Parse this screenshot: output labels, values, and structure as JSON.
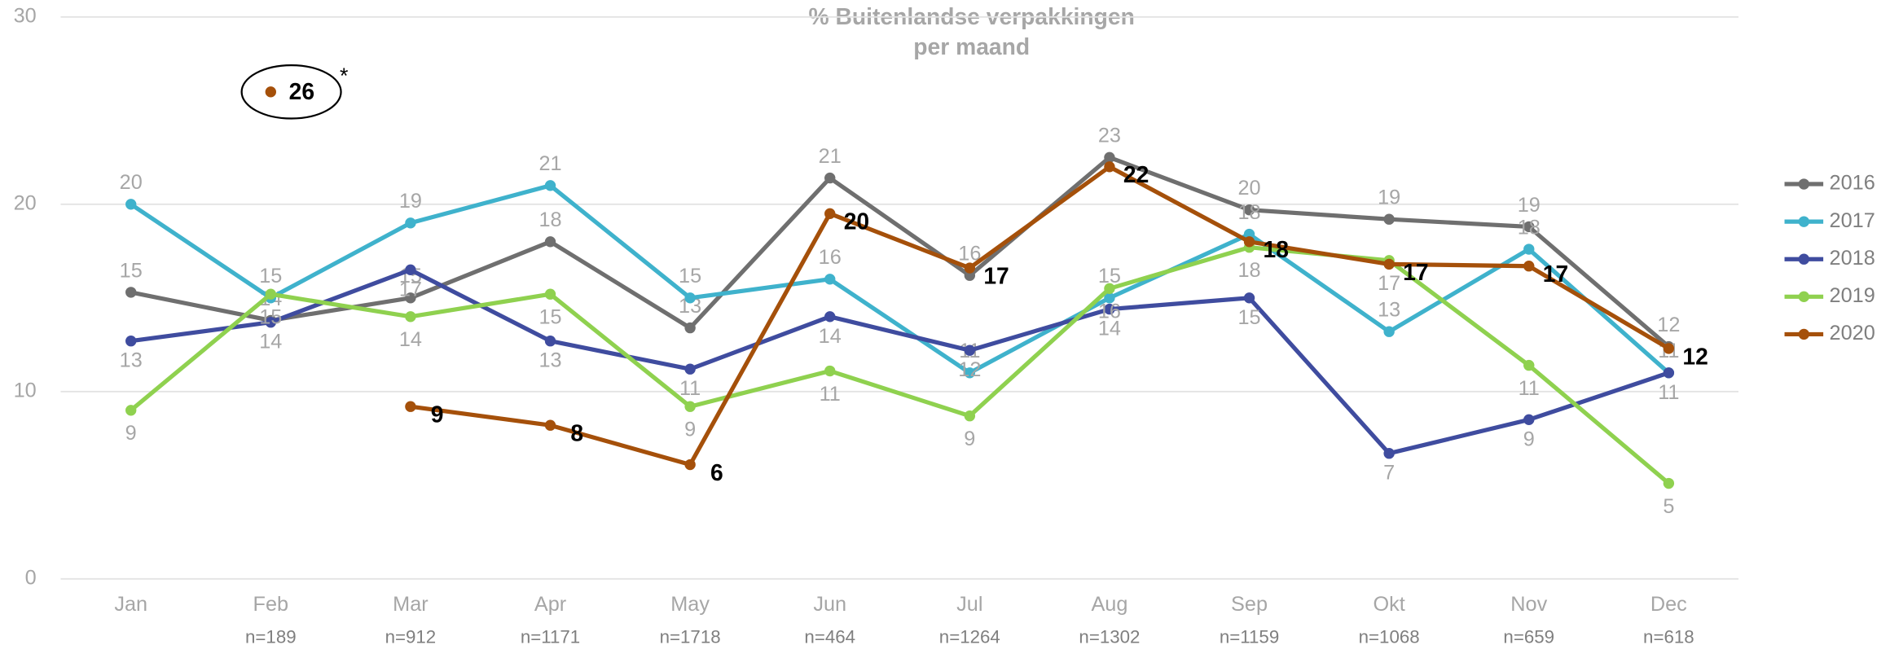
{
  "chart_data": {
    "type": "line",
    "title": "% Buitenlandse verpakkingen",
    "subtitle": "per maand",
    "categories": [
      "Jan",
      "Feb",
      "Mar",
      "Apr",
      "May",
      "Jun",
      "Jul",
      "Aug",
      "Sep",
      "Okt",
      "Nov",
      "Dec"
    ],
    "sample_sizes": [
      null,
      "n=189",
      "n=912",
      "n=1171",
      "n=1718",
      "n=464",
      "n=1264",
      "n=1302",
      "n=1159",
      "n=1068",
      "n=659",
      "n=618"
    ],
    "ylim": [
      0,
      30
    ],
    "yticks": [
      0,
      10,
      20,
      30
    ],
    "grid": true,
    "legend": "right",
    "series": [
      {
        "name": "2016",
        "color": "#6f6f6f",
        "values": [
          15.3,
          13.8,
          15,
          18,
          13.4,
          21.4,
          16.2,
          22.5,
          19.7,
          19.2,
          18.8,
          12.4
        ],
        "value_labels": [
          "15",
          "14",
          "15",
          "18",
          "13",
          "21",
          "16",
          "23",
          "20",
          "19",
          "19",
          "12"
        ]
      },
      {
        "name": "2017",
        "color": "#3fb2cc",
        "values": [
          20,
          15,
          19,
          21,
          15,
          16,
          11,
          15,
          18.4,
          13.2,
          17.6,
          11
        ],
        "value_labels": [
          "20",
          "15",
          "19",
          "21",
          "15",
          "16",
          "11",
          "15",
          "18",
          "13",
          "18",
          "11"
        ]
      },
      {
        "name": "2018",
        "color": "#3f4c9f",
        "values": [
          12.7,
          13.7,
          16.5,
          12.7,
          11.2,
          14,
          12.2,
          14.4,
          15,
          6.7,
          8.5,
          11
        ],
        "value_labels": [
          "13",
          "14",
          "17",
          "13",
          "11",
          "14",
          "12",
          "14",
          "15",
          "7",
          "9",
          "11"
        ]
      },
      {
        "name": "2019",
        "color": "#8fd14f",
        "values": [
          9,
          15.2,
          14,
          15.2,
          9.2,
          11.1,
          8.7,
          15.5,
          17.7,
          17,
          11.4,
          5.1
        ],
        "value_labels": [
          "9",
          "15",
          "14",
          "15",
          "9",
          "11",
          "9",
          "16",
          "18",
          "17",
          "11",
          "5"
        ]
      },
      {
        "name": "2020",
        "color": "#a5500a",
        "values": [
          null,
          null,
          9.2,
          8.2,
          6.1,
          19.5,
          16.6,
          22,
          18,
          16.8,
          16.7,
          12.3
        ],
        "value_labels": [
          null,
          null,
          "9",
          "8",
          "6",
          "20",
          "17",
          "22",
          "18",
          "17",
          "17",
          "12"
        ]
      }
    ],
    "outlier": {
      "series": "2020",
      "category": "Feb",
      "value": 26,
      "note": "*"
    }
  }
}
